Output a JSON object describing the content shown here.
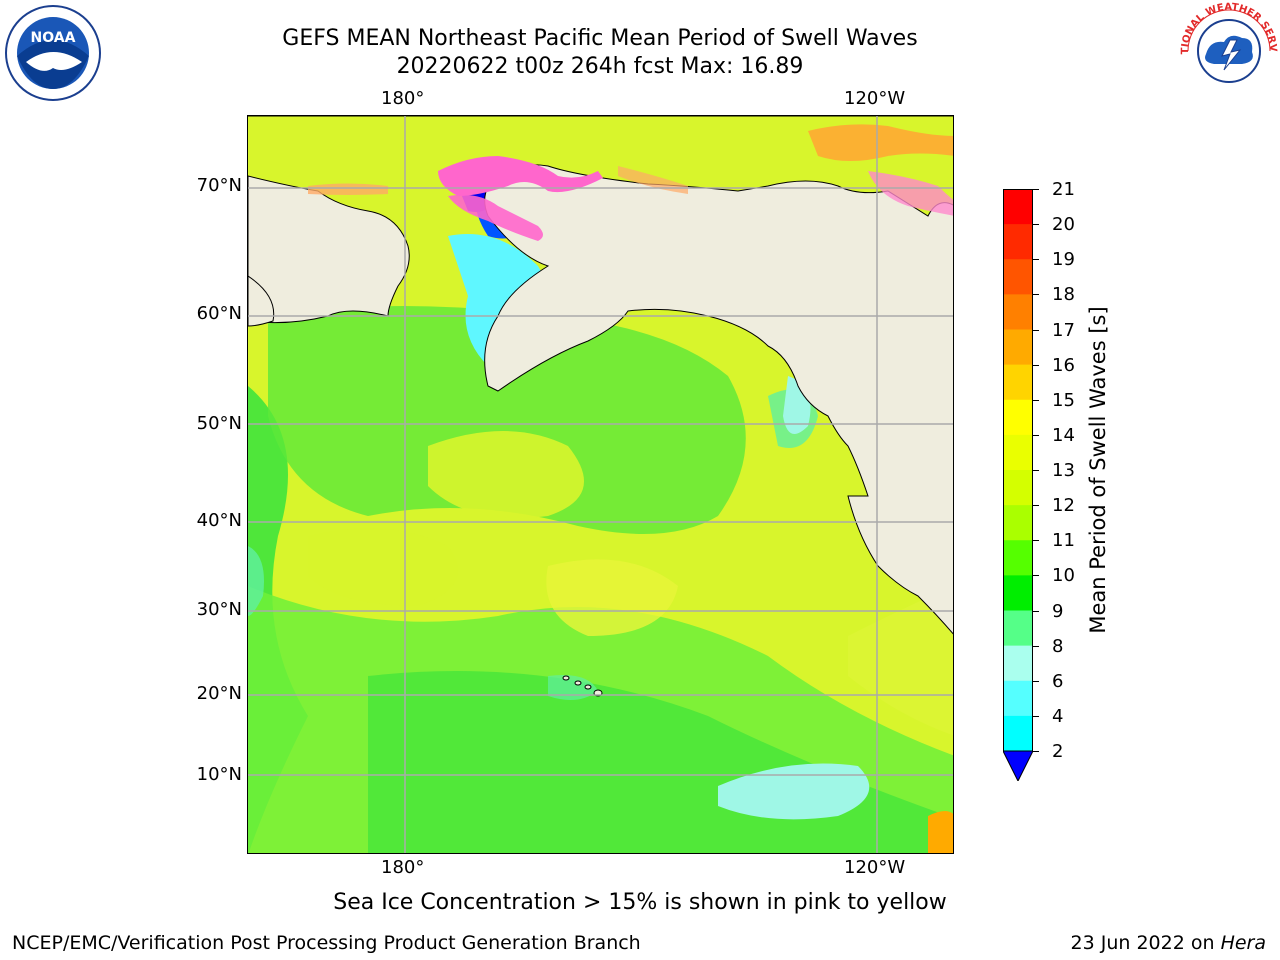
{
  "title": {
    "line1": "GEFS MEAN Northeast Pacific Mean Period of Swell Waves",
    "line2": "20220622 t00z 264h fcst   Max: 16.89"
  },
  "axes": {
    "lon_top": [
      "180°",
      "120°W"
    ],
    "lon_bottom": [
      "180°",
      "120°W"
    ],
    "lat": [
      "70°N",
      "60°N",
      "50°N",
      "40°N",
      "30°N",
      "20°N",
      "10°N"
    ]
  },
  "colorbar": {
    "label": "Mean Period of Swell Waves [s]",
    "ticks": [
      "21",
      "20",
      "19",
      "18",
      "17",
      "16",
      "15",
      "14",
      "13",
      "12",
      "11",
      "10",
      "9",
      "8",
      "6",
      "4",
      "2"
    ],
    "colors": [
      "#ff0000",
      "#ff2a00",
      "#ff5500",
      "#ff8000",
      "#ffaa00",
      "#ffd400",
      "#ffff00",
      "#eaff00",
      "#d4ff00",
      "#aaff00",
      "#55ff00",
      "#00ee00",
      "#55ff88",
      "#aaffee",
      "#55ffff",
      "#00ffff",
      "#00aaff",
      "#0055ff"
    ],
    "extend_color": "#0000ff"
  },
  "note": "Sea Ice Concentration > 15% is shown in pink to yellow",
  "footer": {
    "left": "NCEP/EMC/Verification Post Processing Product Generation Branch",
    "right_prefix": "23 Jun 2022 on ",
    "right_host": "Hera"
  },
  "logos": {
    "left": "NOAA",
    "right": "NATIONAL WEATHER SERVICE"
  }
}
